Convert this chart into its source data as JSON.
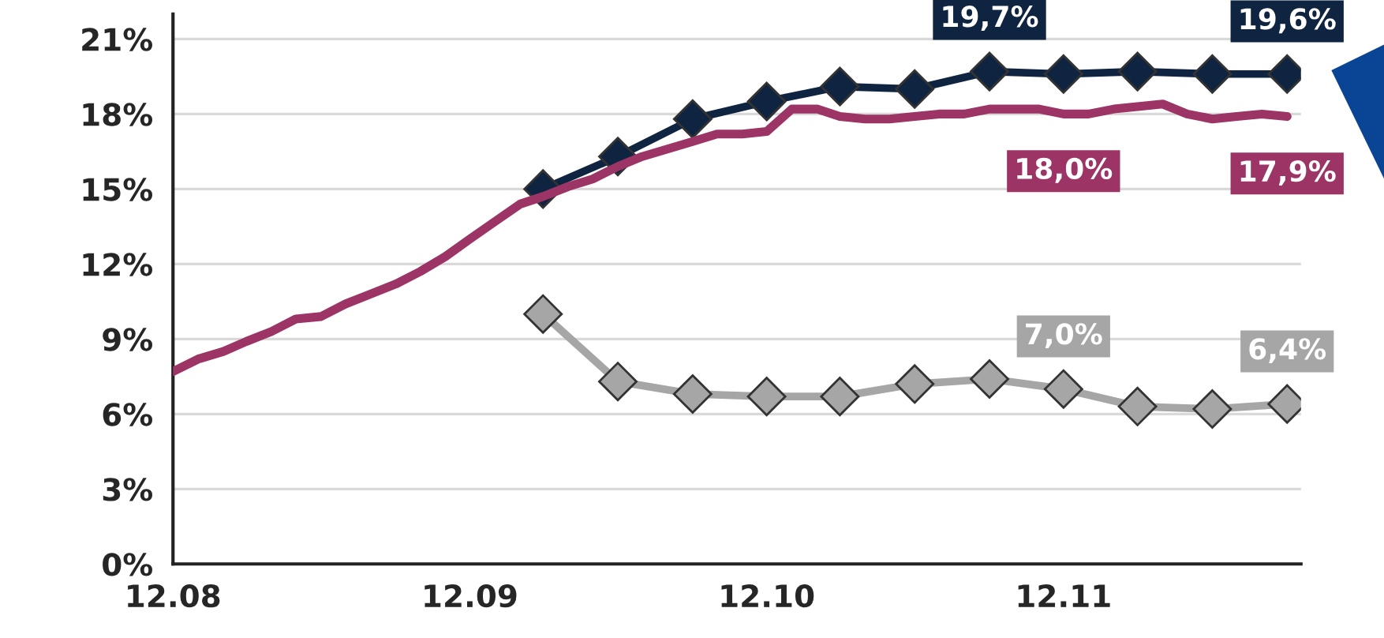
{
  "chart_data": {
    "type": "line",
    "xlim": [
      "2008-12-01",
      "2012-09-18"
    ],
    "ylim": [
      0,
      22
    ],
    "xticks": [
      {
        "value": "2008-12",
        "label": "12.08"
      },
      {
        "value": "2009-12",
        "label": "12.09"
      },
      {
        "value": "2010-12",
        "label": "12.10"
      },
      {
        "value": "2011-12",
        "label": "12.11"
      }
    ],
    "yticks": [
      {
        "value": 0,
        "label": "0%"
      },
      {
        "value": 3,
        "label": "3%"
      },
      {
        "value": 6,
        "label": "6%"
      },
      {
        "value": 9,
        "label": "9%"
      },
      {
        "value": 12,
        "label": "12%"
      },
      {
        "value": 15,
        "label": "15%"
      },
      {
        "value": 18,
        "label": "18%"
      },
      {
        "value": 21,
        "label": "21%"
      }
    ],
    "grid": "y",
    "series": [
      {
        "color": "#0f2440",
        "marker": "diamond",
        "x": [
          "2010-03",
          "2010-06",
          "2010-09",
          "2010-12",
          "2011-03",
          "2011-06",
          "2011-09",
          "2011-12",
          "2012-03",
          "2012-06",
          "2012-09"
        ],
        "values": [
          15.0,
          16.3,
          17.8,
          18.5,
          19.1,
          19.0,
          19.7,
          19.6,
          19.7,
          19.6,
          19.6
        ],
        "value_labels": [
          null,
          null,
          null,
          null,
          null,
          null,
          "19,7%",
          null,
          null,
          null,
          "19,6%"
        ]
      },
      {
        "color": "#9c3466",
        "marker": "none",
        "x": [
          "2008-12",
          "2009-01",
          "2009-02",
          "2009-03",
          "2009-04",
          "2009-05",
          "2009-06",
          "2009-07",
          "2009-08",
          "2009-09",
          "2009-10",
          "2009-11",
          "2009-12",
          "2010-01",
          "2010-02",
          "2010-03",
          "2010-04",
          "2010-05",
          "2010-06",
          "2010-07",
          "2010-08",
          "2010-09",
          "2010-10",
          "2010-11",
          "2010-12",
          "2011-01",
          "2011-02",
          "2011-03",
          "2011-04",
          "2011-05",
          "2011-06",
          "2011-07",
          "2011-08",
          "2011-09",
          "2011-10",
          "2011-11",
          "2011-12",
          "2012-01",
          "2012-02",
          "2012-03",
          "2012-04",
          "2012-05",
          "2012-06",
          "2012-07",
          "2012-08",
          "2012-09"
        ],
        "values": [
          7.7,
          8.2,
          8.5,
          8.9,
          9.3,
          9.8,
          9.9,
          10.4,
          10.8,
          11.2,
          11.7,
          12.3,
          13.0,
          13.7,
          14.4,
          14.7,
          15.1,
          15.4,
          15.9,
          16.3,
          16.6,
          16.9,
          17.2,
          17.2,
          17.3,
          18.2,
          18.2,
          17.9,
          17.8,
          17.8,
          17.9,
          18.0,
          18.0,
          18.2,
          18.2,
          18.2,
          18.0,
          18.0,
          18.2,
          18.3,
          18.4,
          18.0,
          17.8,
          17.9,
          18.0,
          17.9
        ],
        "value_labels": [
          null,
          null,
          null,
          null,
          null,
          null,
          null,
          null,
          null,
          null,
          null,
          null,
          null,
          null,
          null,
          null,
          null,
          null,
          null,
          null,
          null,
          null,
          null,
          null,
          null,
          null,
          null,
          null,
          null,
          null,
          null,
          null,
          null,
          null,
          null,
          null,
          "18,0%",
          null,
          null,
          null,
          null,
          null,
          null,
          null,
          null,
          "17,9%"
        ]
      },
      {
        "color": "#a6a6a6",
        "marker": "diamond",
        "x": [
          "2010-03",
          "2010-06",
          "2010-09",
          "2010-12",
          "2011-03",
          "2011-06",
          "2011-09",
          "2011-12",
          "2012-03",
          "2012-06",
          "2012-09"
        ],
        "values": [
          10.0,
          7.3,
          6.8,
          6.7,
          6.7,
          7.2,
          7.4,
          7.0,
          6.3,
          6.2,
          6.4
        ],
        "value_labels": [
          null,
          null,
          null,
          null,
          null,
          null,
          null,
          "7,0%",
          null,
          null,
          "6,4%"
        ]
      }
    ]
  }
}
